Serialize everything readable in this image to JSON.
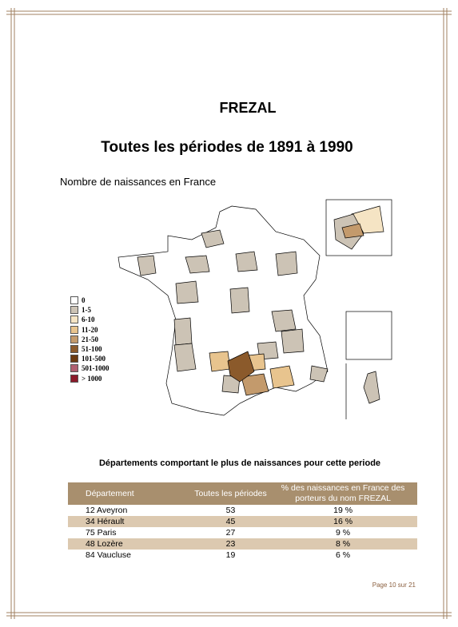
{
  "header": {
    "title": "FREZAL",
    "subtitle": "Toutes les périodes de 1891 à 1990"
  },
  "map": {
    "title": "Nombre de naissances en France",
    "legend": [
      {
        "label": "0",
        "color": "#ffffff"
      },
      {
        "label": "1-5",
        "color": "#ccc3b5"
      },
      {
        "label": "6-10",
        "color": "#f5e4c4"
      },
      {
        "label": "11-20",
        "color": "#e8c48e"
      },
      {
        "label": "21-50",
        "color": "#c39a6c"
      },
      {
        "label": "51-100",
        "color": "#8b5a2b"
      },
      {
        "label": "101-500",
        "color": "#6b3a10"
      },
      {
        "label": "501-1000",
        "color": "#b06070"
      },
      {
        "label": "> 1000",
        "color": "#8b1a2a"
      }
    ]
  },
  "table": {
    "caption": "Départements comportant le plus de naissances pour cette periode",
    "columns": [
      "Département",
      "Toutes les périodes",
      "% des naissances en France des porteurs du nom FREZAL"
    ],
    "rows": [
      [
        "12 Aveyron",
        "53",
        "19 %"
      ],
      [
        "34 Hérault",
        "45",
        "16 %"
      ],
      [
        "75 Paris",
        "27",
        "9 %"
      ],
      [
        "48 Lozère",
        "23",
        "8 %"
      ],
      [
        "84 Vaucluse",
        "19",
        "6 %"
      ]
    ]
  },
  "footer": "Page 10 sur 21"
}
